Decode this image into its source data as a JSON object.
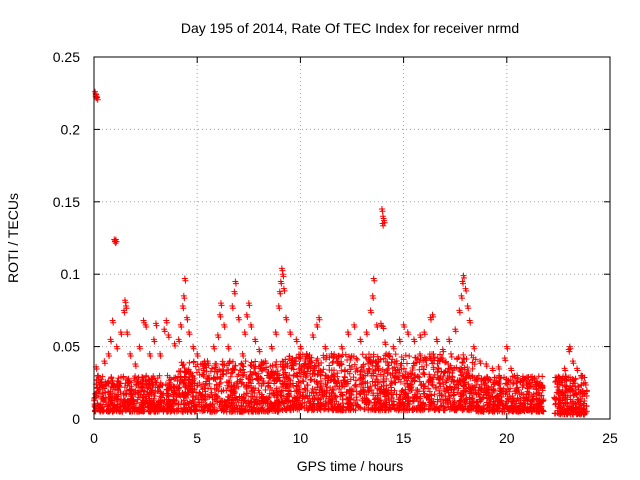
{
  "chart_data": {
    "type": "scatter",
    "title": "Day 195 of 2014, Rate Of TEC Index for receiver nrmd",
    "xlabel": "GPS time / hours",
    "ylabel": "ROTI / TECUs",
    "xlim": [
      0,
      25
    ],
    "ylim": [
      0,
      0.25
    ],
    "xticks": [
      0,
      5,
      10,
      15,
      20,
      25
    ],
    "yticks": [
      0,
      0.05,
      0.1,
      0.15,
      0.2,
      0.25
    ],
    "xtick_labels": [
      "0",
      "5",
      "10",
      "15",
      "20",
      "25"
    ],
    "ytick_labels": [
      "0",
      "0.05",
      "0.1",
      "0.15",
      "0.2",
      "0.25"
    ],
    "grid": true,
    "marker": "+",
    "marker_color": "#ff0000",
    "series": [
      {
        "name": "ROTI",
        "points": [
          [
            0.05,
            0.226
          ],
          [
            0.1,
            0.224
          ],
          [
            0.15,
            0.222
          ],
          [
            0.08,
            0.223
          ],
          [
            0.98,
            0.124
          ],
          [
            1.02,
            0.123
          ],
          [
            1.06,
            0.124
          ],
          [
            0.1,
            0.036
          ],
          [
            0.2,
            0.03
          ],
          [
            0.35,
            0.025
          ],
          [
            0.5,
            0.04
          ],
          [
            0.7,
            0.045
          ],
          [
            0.8,
            0.055
          ],
          [
            0.9,
            0.068
          ],
          [
            1.1,
            0.05
          ],
          [
            1.3,
            0.06
          ],
          [
            1.45,
            0.075
          ],
          [
            1.5,
            0.082
          ],
          [
            1.55,
            0.078
          ],
          [
            1.6,
            0.06
          ],
          [
            1.75,
            0.045
          ],
          [
            2.0,
            0.038
          ],
          [
            2.2,
            0.05
          ],
          [
            2.4,
            0.068
          ],
          [
            2.5,
            0.065
          ],
          [
            2.7,
            0.045
          ],
          [
            2.9,
            0.055
          ],
          [
            3.0,
            0.066
          ],
          [
            3.2,
            0.045
          ],
          [
            3.4,
            0.062
          ],
          [
            3.5,
            0.068
          ],
          [
            3.6,
            0.058
          ],
          [
            3.9,
            0.052
          ],
          [
            4.1,
            0.055
          ],
          [
            4.2,
            0.065
          ],
          [
            4.3,
            0.078
          ],
          [
            4.35,
            0.085
          ],
          [
            4.4,
            0.097
          ],
          [
            4.5,
            0.07
          ],
          [
            4.6,
            0.06
          ],
          [
            4.8,
            0.05
          ],
          [
            5.0,
            0.045
          ],
          [
            5.3,
            0.035
          ],
          [
            5.5,
            0.04
          ],
          [
            5.8,
            0.05
          ],
          [
            6.0,
            0.058
          ],
          [
            6.1,
            0.072
          ],
          [
            6.15,
            0.08
          ],
          [
            6.3,
            0.065
          ],
          [
            6.5,
            0.05
          ],
          [
            6.7,
            0.078
          ],
          [
            6.8,
            0.088
          ],
          [
            6.85,
            0.095
          ],
          [
            7.0,
            0.07
          ],
          [
            7.2,
            0.045
          ],
          [
            7.3,
            0.06
          ],
          [
            7.4,
            0.072
          ],
          [
            7.5,
            0.08
          ],
          [
            7.6,
            0.065
          ],
          [
            7.8,
            0.055
          ],
          [
            8.0,
            0.048
          ],
          [
            8.3,
            0.04
          ],
          [
            8.6,
            0.05
          ],
          [
            8.8,
            0.06
          ],
          [
            8.95,
            0.078
          ],
          [
            9.0,
            0.088
          ],
          [
            9.05,
            0.095
          ],
          [
            9.1,
            0.104
          ],
          [
            9.15,
            0.1
          ],
          [
            9.2,
            0.09
          ],
          [
            9.3,
            0.07
          ],
          [
            9.5,
            0.06
          ],
          [
            9.8,
            0.055
          ],
          [
            10.0,
            0.05
          ],
          [
            10.3,
            0.045
          ],
          [
            10.6,
            0.058
          ],
          [
            10.8,
            0.065
          ],
          [
            10.9,
            0.07
          ],
          [
            11.2,
            0.05
          ],
          [
            11.5,
            0.045
          ],
          [
            11.8,
            0.04
          ],
          [
            12.0,
            0.05
          ],
          [
            12.3,
            0.06
          ],
          [
            12.6,
            0.065
          ],
          [
            12.9,
            0.055
          ],
          [
            13.2,
            0.06
          ],
          [
            13.4,
            0.075
          ],
          [
            13.5,
            0.085
          ],
          [
            13.55,
            0.097
          ],
          [
            13.7,
            0.065
          ],
          [
            13.9,
            0.066
          ],
          [
            14.0,
            0.064
          ],
          [
            14.1,
            0.053
          ],
          [
            14.3,
            0.045
          ],
          [
            14.5,
            0.05
          ],
          [
            14.8,
            0.055
          ],
          [
            15.0,
            0.065
          ],
          [
            15.2,
            0.06
          ],
          [
            15.5,
            0.055
          ],
          [
            15.8,
            0.058
          ],
          [
            16.0,
            0.06
          ],
          [
            16.3,
            0.07
          ],
          [
            16.4,
            0.072
          ],
          [
            16.6,
            0.055
          ],
          [
            16.9,
            0.048
          ],
          [
            17.2,
            0.055
          ],
          [
            17.5,
            0.062
          ],
          [
            17.7,
            0.075
          ],
          [
            17.8,
            0.085
          ],
          [
            17.85,
            0.095
          ],
          [
            17.9,
            0.099
          ],
          [
            18.0,
            0.09
          ],
          [
            18.1,
            0.078
          ],
          [
            18.2,
            0.068
          ],
          [
            18.4,
            0.05
          ],
          [
            18.7,
            0.04
          ],
          [
            19.0,
            0.038
          ],
          [
            19.3,
            0.035
          ],
          [
            19.6,
            0.036
          ],
          [
            19.9,
            0.042
          ],
          [
            20.0,
            0.05
          ],
          [
            20.2,
            0.035
          ],
          [
            20.5,
            0.03
          ],
          [
            20.8,
            0.028
          ],
          [
            21.1,
            0.025
          ],
          [
            21.4,
            0.024
          ],
          [
            21.7,
            0.023
          ],
          [
            22.5,
            0.02
          ],
          [
            22.8,
            0.035
          ],
          [
            23.0,
            0.048
          ],
          [
            23.05,
            0.05
          ],
          [
            23.2,
            0.04
          ],
          [
            23.4,
            0.035
          ],
          [
            23.6,
            0.03
          ],
          [
            23.8,
            0.025
          ],
          [
            13.95,
            0.145
          ],
          [
            14.0,
            0.14
          ],
          [
            14.05,
            0.137
          ],
          [
            13.98,
            0.135
          ]
        ]
      }
    ],
    "dense_band": [
      {
        "x": [
          0.0,
          4.0
        ],
        "y": [
          0.005,
          0.03
        ]
      },
      {
        "x": [
          4.0,
          9.0
        ],
        "y": [
          0.005,
          0.04
        ]
      },
      {
        "x": [
          9.0,
          14.0
        ],
        "y": [
          0.006,
          0.045
        ]
      },
      {
        "x": [
          14.0,
          18.5
        ],
        "y": [
          0.006,
          0.045
        ]
      },
      {
        "x": [
          18.5,
          21.8
        ],
        "y": [
          0.005,
          0.03
        ]
      },
      {
        "x": [
          22.3,
          23.9
        ],
        "y": [
          0.003,
          0.03
        ]
      }
    ]
  }
}
